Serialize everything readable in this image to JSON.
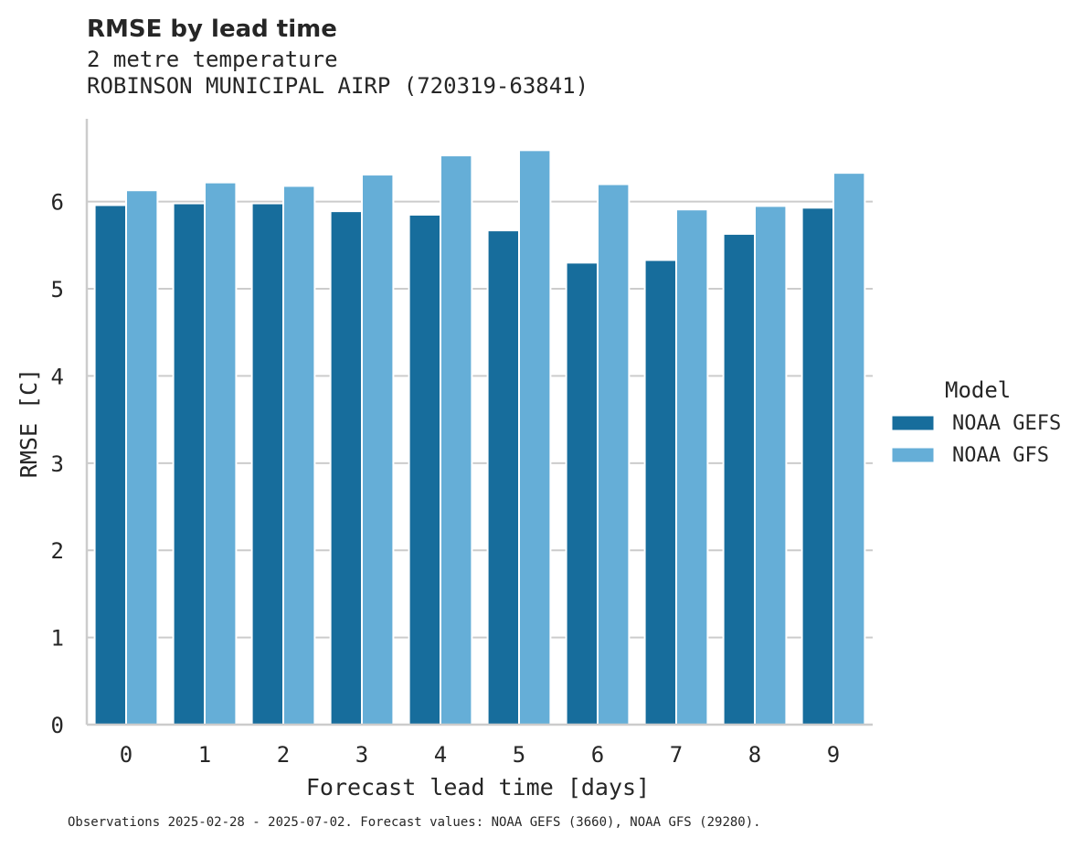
{
  "title": "RMSE by lead time",
  "subtitle_line1": "2 metre temperature",
  "subtitle_line2": "ROBINSON MUNICIPAL AIRP (720319-63841)",
  "footnote": "Observations 2025-02-28 - 2025-07-02. Forecast values: NOAA GEFS (3660), NOAA GFS (29280).",
  "chart_data": {
    "type": "bar",
    "title": "RMSE by lead time",
    "xlabel": "Forecast lead time [days]",
    "ylabel": "RMSE [C]",
    "categories": [
      "0",
      "1",
      "2",
      "3",
      "4",
      "5",
      "6",
      "7",
      "8",
      "9"
    ],
    "ylim": [
      0,
      6.95
    ],
    "yticks": [
      0,
      1,
      2,
      3,
      4,
      5,
      6
    ],
    "grid": true,
    "legend_title": "Model",
    "legend_position": "right",
    "series": [
      {
        "name": "NOAA GEFS",
        "color": "#176d9c",
        "values": [
          5.96,
          5.98,
          5.98,
          5.89,
          5.85,
          5.67,
          5.3,
          5.33,
          5.63,
          5.93
        ]
      },
      {
        "name": "NOAA GFS",
        "color": "#65aed7",
        "values": [
          6.13,
          6.22,
          6.18,
          6.31,
          6.53,
          6.59,
          6.2,
          5.91,
          5.95,
          6.33
        ]
      }
    ]
  }
}
